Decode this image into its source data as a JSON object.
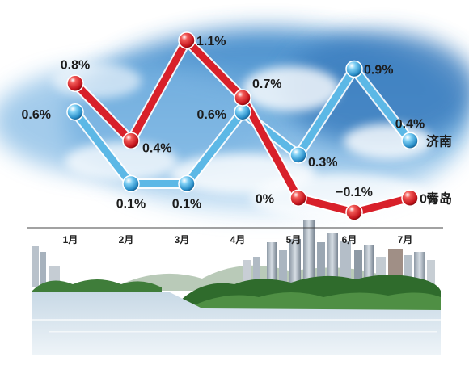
{
  "chart_data": {
    "type": "line",
    "categories": [
      "1月",
      "2月",
      "3月",
      "4月",
      "5月",
      "6月",
      "7月"
    ],
    "series": [
      {
        "name": "济南",
        "values": [
          0.6,
          0.1,
          0.1,
          0.6,
          0.3,
          0.9,
          0.4
        ],
        "labels": [
          "0.6%",
          "0.1%",
          "0.1%",
          "0.6%",
          "0.3%",
          "0.9%",
          "0.4%"
        ],
        "color": "#5cb8e6"
      },
      {
        "name": "青岛",
        "values": [
          0.8,
          0.4,
          1.1,
          0.7,
          0,
          -0.1,
          0
        ],
        "labels": [
          "0.8%",
          "0.4%",
          "1.1%",
          "0.7%",
          "0%",
          "−0.1%",
          "0%"
        ],
        "color": "#d8202a"
      }
    ],
    "ylim": [
      -0.1,
      1.1
    ],
    "grid": false,
    "legend": "right, at line ends"
  }
}
